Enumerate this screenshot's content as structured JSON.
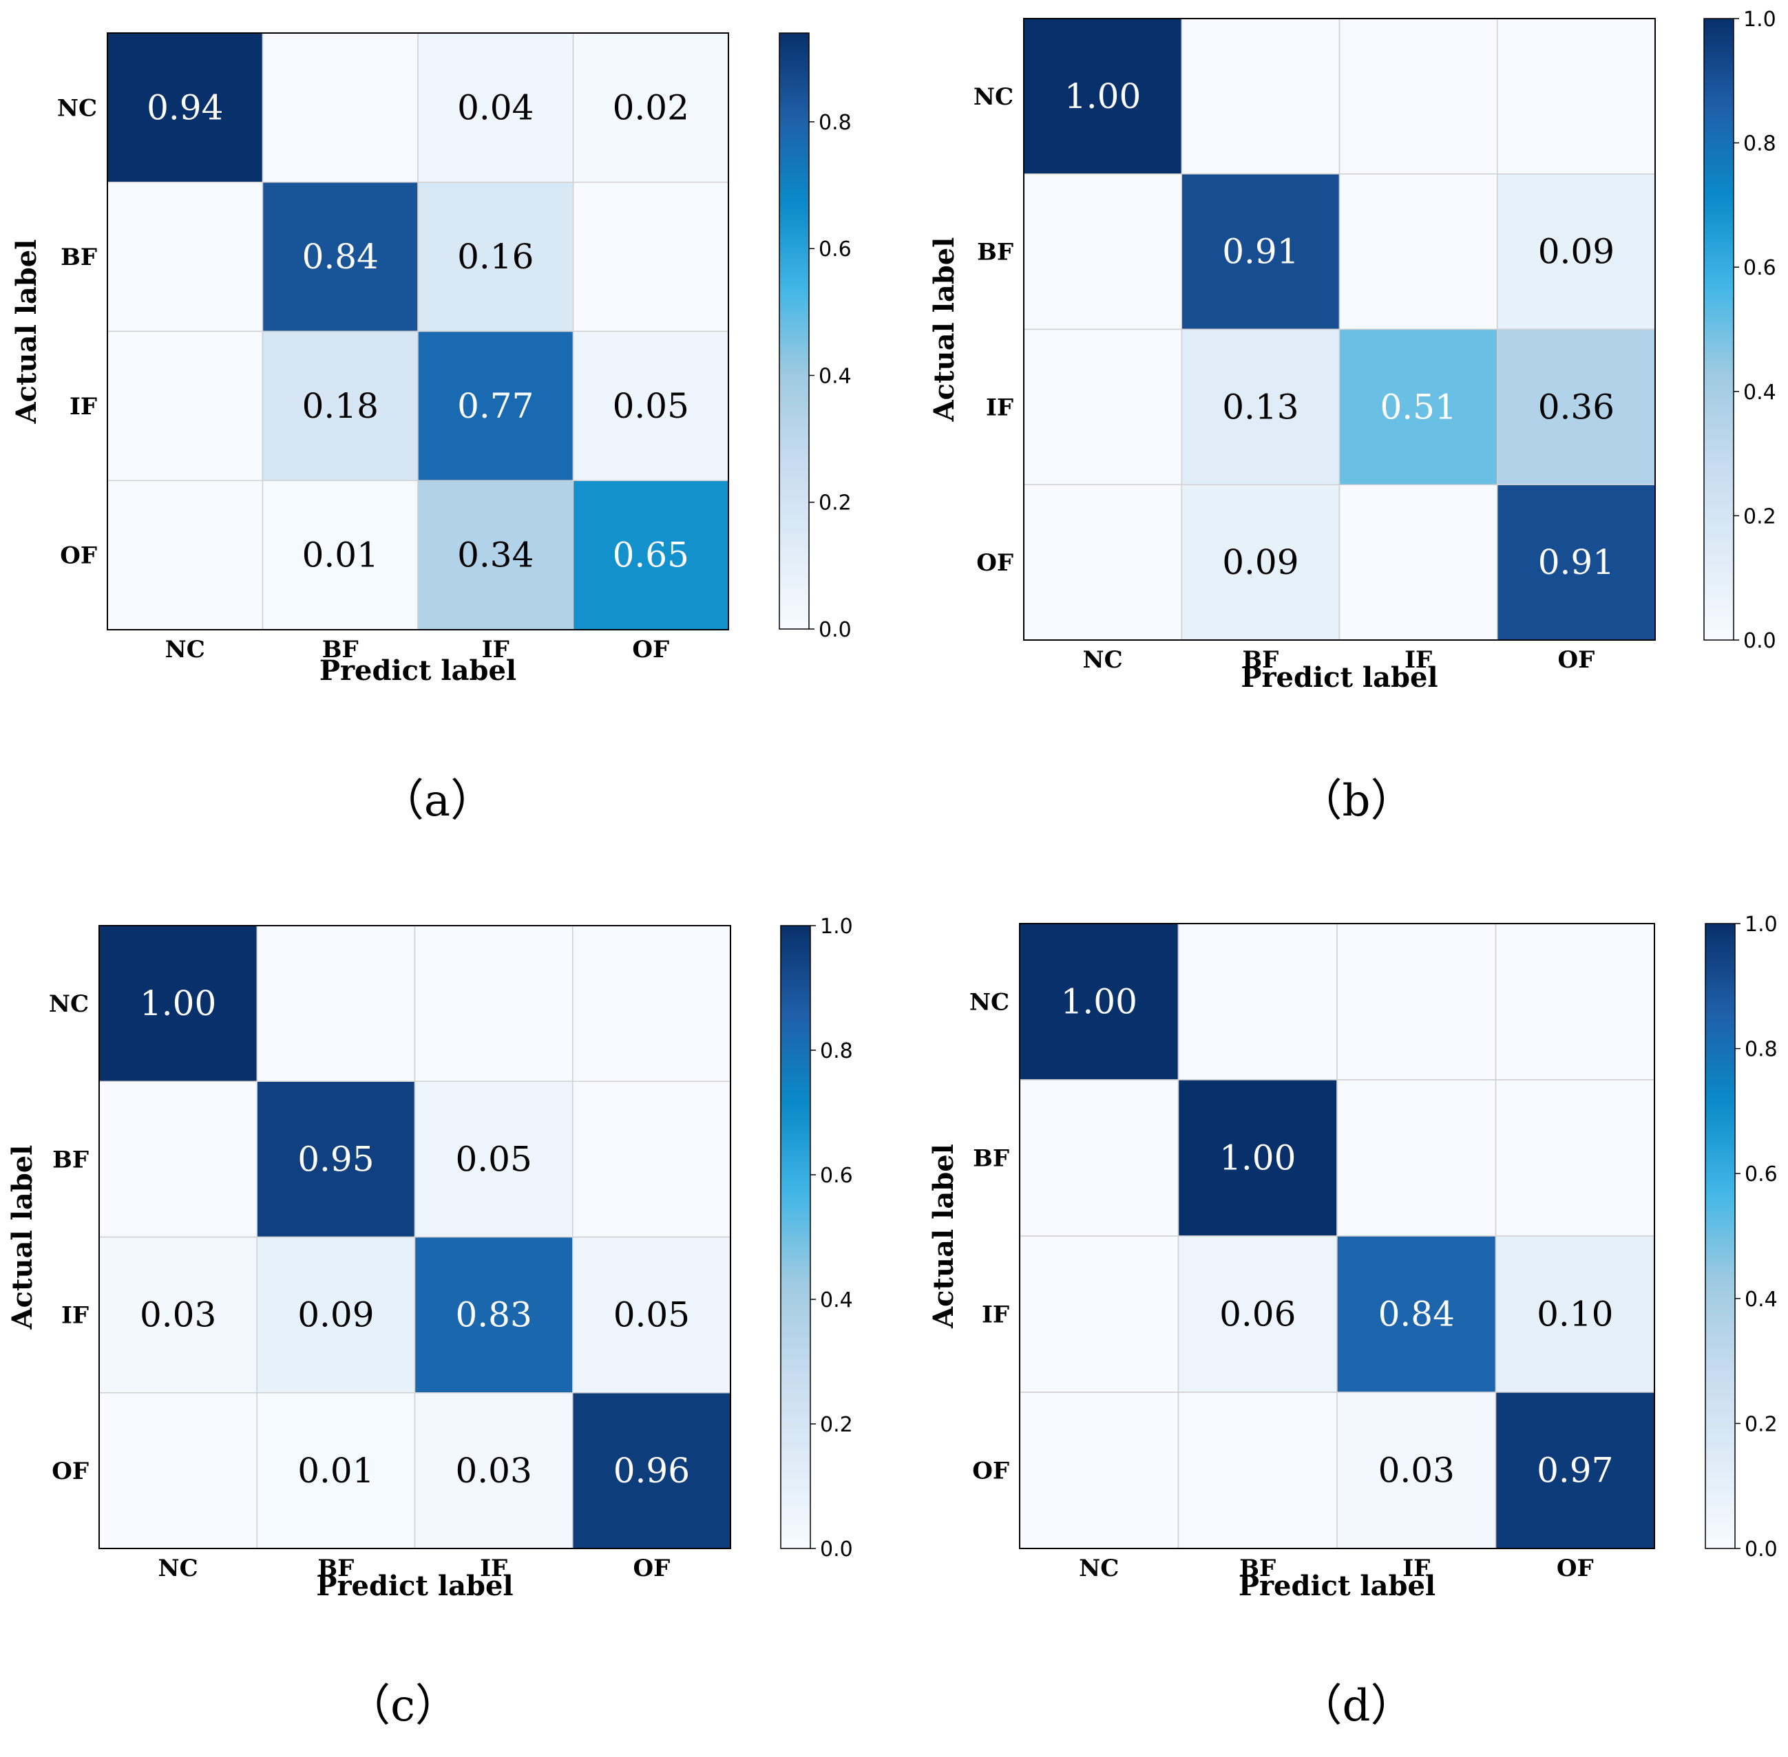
{
  "chart_data": [
    {
      "type": "heatmap",
      "caption": "（a）",
      "row_labels": [
        "NC",
        "BF",
        "IF",
        "OF"
      ],
      "col_labels": [
        "NC",
        "BF",
        "IF",
        "OF"
      ],
      "xlabel": "Predict label",
      "ylabel": "Actual label",
      "values": [
        [
          0.94,
          0.0,
          0.04,
          0.02
        ],
        [
          0.0,
          0.84,
          0.16,
          0.0
        ],
        [
          0.0,
          0.18,
          0.77,
          0.05
        ],
        [
          0.0,
          0.01,
          0.34,
          0.65
        ]
      ],
      "colorbar": {
        "min": 0.0,
        "max": 0.94,
        "ticks": [
          "0.0",
          "0.2",
          "0.4",
          "0.6",
          "0.8"
        ]
      }
    },
    {
      "type": "heatmap",
      "caption": "（b）",
      "row_labels": [
        "NC",
        "BF",
        "IF",
        "OF"
      ],
      "col_labels": [
        "NC",
        "BF",
        "IF",
        "OF"
      ],
      "xlabel": "Predict label",
      "ylabel": "Actual label",
      "values": [
        [
          1.0,
          0.0,
          0.0,
          0.0
        ],
        [
          0.0,
          0.91,
          0.0,
          0.09
        ],
        [
          0.0,
          0.13,
          0.51,
          0.36
        ],
        [
          0.0,
          0.09,
          0.0,
          0.91
        ]
      ],
      "colorbar": {
        "min": 0.0,
        "max": 1.0,
        "ticks": [
          "0.0",
          "0.2",
          "0.4",
          "0.6",
          "0.8",
          "1.0"
        ]
      }
    },
    {
      "type": "heatmap",
      "caption": "（c）",
      "row_labels": [
        "NC",
        "BF",
        "IF",
        "OF"
      ],
      "col_labels": [
        "NC",
        "BF",
        "IF",
        "OF"
      ],
      "xlabel": "Predict label",
      "ylabel": "Actual label",
      "values": [
        [
          1.0,
          0.0,
          0.0,
          0.0
        ],
        [
          0.0,
          0.95,
          0.05,
          0.0
        ],
        [
          0.03,
          0.09,
          0.83,
          0.05
        ],
        [
          0.0,
          0.01,
          0.03,
          0.96
        ]
      ],
      "colorbar": {
        "min": 0.0,
        "max": 1.0,
        "ticks": [
          "0.0",
          "0.2",
          "0.4",
          "0.6",
          "0.8",
          "1.0"
        ]
      }
    },
    {
      "type": "heatmap",
      "caption": "（d）",
      "row_labels": [
        "NC",
        "BF",
        "IF",
        "OF"
      ],
      "col_labels": [
        "NC",
        "BF",
        "IF",
        "OF"
      ],
      "xlabel": "Predict label",
      "ylabel": "Actual label",
      "values": [
        [
          1.0,
          0.0,
          0.0,
          0.0
        ],
        [
          0.0,
          1.0,
          0.0,
          0.0
        ],
        [
          0.0,
          0.06,
          0.84,
          0.1
        ],
        [
          0.0,
          0.0,
          0.03,
          0.97
        ]
      ],
      "colorbar": {
        "min": 0.0,
        "max": 1.0,
        "ticks": [
          "0.0",
          "0.2",
          "0.4",
          "0.6",
          "0.8",
          "1.0"
        ]
      }
    }
  ],
  "colormap": {
    "name": "Blues",
    "stops": [
      "#f7fbff",
      "#deebf7",
      "#c6dbef",
      "#9ecae1",
      "#41b6e6",
      "#0a8ac8",
      "#1f5fa8",
      "#08306b"
    ]
  }
}
